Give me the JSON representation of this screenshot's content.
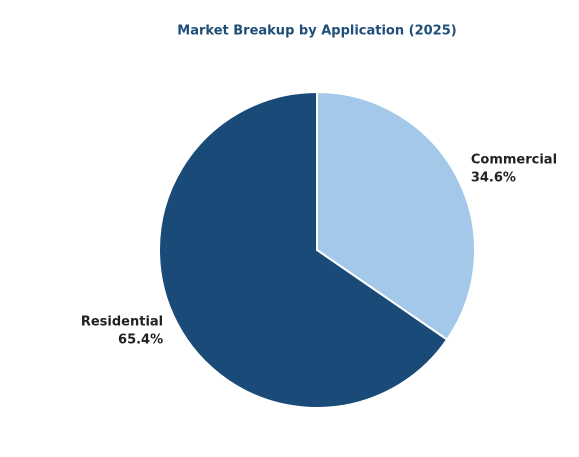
{
  "chart_data": {
    "type": "pie",
    "title": "Market Breakup by Application (2025)",
    "categories": [
      "Commercial",
      "Residential"
    ],
    "values": [
      34.6,
      65.4
    ],
    "value_labels": [
      "34.6%",
      "65.4%"
    ],
    "colors": [
      "#a3c8ea",
      "#1a4a78"
    ]
  }
}
